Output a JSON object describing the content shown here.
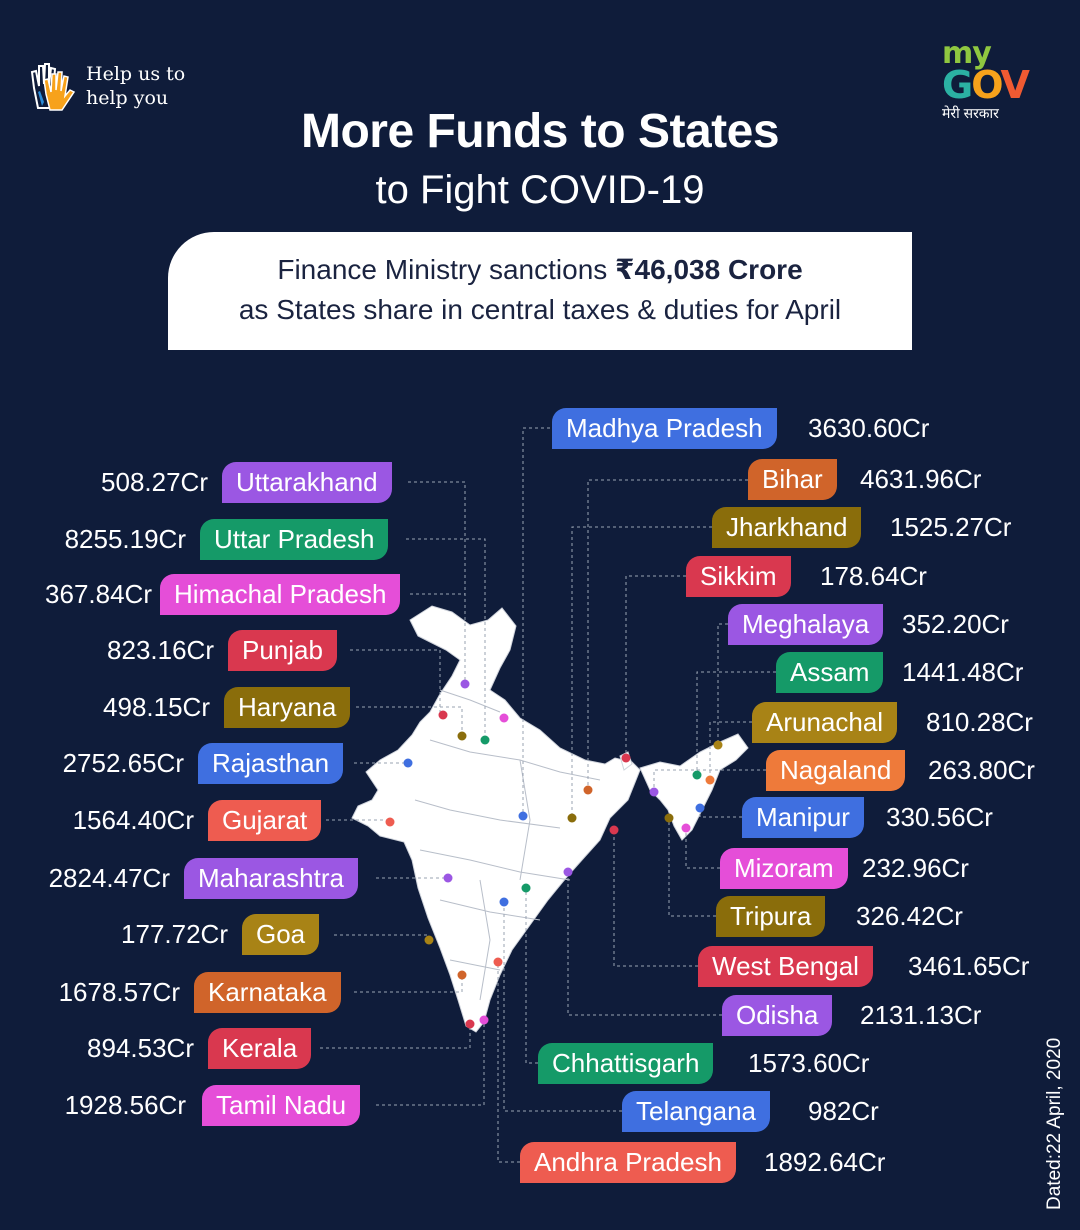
{
  "header": {
    "help_text_line1": "Help us to",
    "help_text_line2": "help you",
    "logo": {
      "my": "my",
      "gov": [
        "G",
        "O",
        "V"
      ],
      "hindi": "मेरी सरकार"
    },
    "title": "More Funds to States",
    "subtitle": "to Fight COVID-19"
  },
  "banner": {
    "line1_prefix": "Finance Ministry sanctions ",
    "line1_amount": "₹46,038 Crore",
    "line2": "as States share in central taxes & duties for April"
  },
  "left_states": [
    {
      "name": "Uttarakhand",
      "value": "508.27Cr",
      "color": "#9b57e3"
    },
    {
      "name": "Uttar Pradesh",
      "value": "8255.19Cr",
      "color": "#159a68"
    },
    {
      "name": "Himachal Pradesh",
      "value": "367.84Cr",
      "color": "#e54ed8"
    },
    {
      "name": "Punjab",
      "value": "823.16Cr",
      "color": "#d9384f"
    },
    {
      "name": "Haryana",
      "value": "498.15Cr",
      "color": "#8a6d0b"
    },
    {
      "name": "Rajasthan",
      "value": "2752.65Cr",
      "color": "#3f6fe0"
    },
    {
      "name": "Gujarat",
      "value": "1564.40Cr",
      "color": "#ee5c50"
    },
    {
      "name": "Maharashtra",
      "value": "2824.47Cr",
      "color": "#9b57e3"
    },
    {
      "name": "Goa",
      "value": "177.72Cr",
      "color": "#a88316"
    },
    {
      "name": "Karnataka",
      "value": "1678.57Cr",
      "color": "#d0642a"
    },
    {
      "name": "Kerala",
      "value": "894.53Cr",
      "color": "#d9384f"
    },
    {
      "name": "Tamil Nadu",
      "value": "1928.56Cr",
      "color": "#e54ed8"
    }
  ],
  "right_states": [
    {
      "name": "Madhya Pradesh",
      "value": "3630.60Cr",
      "color": "#3f6fe0"
    },
    {
      "name": "Bihar",
      "value": "4631.96Cr",
      "color": "#d0642a"
    },
    {
      "name": "Jharkhand",
      "value": "1525.27Cr",
      "color": "#8a6d0b"
    },
    {
      "name": "Sikkim",
      "value": "178.64Cr",
      "color": "#d9384f"
    },
    {
      "name": "Meghalaya",
      "value": "352.20Cr",
      "color": "#9b57e3"
    },
    {
      "name": "Assam",
      "value": "1441.48Cr",
      "color": "#159a68"
    },
    {
      "name": "Arunachal",
      "value": "810.28Cr",
      "color": "#a88316"
    },
    {
      "name": "Nagaland",
      "value": "263.80Cr",
      "color": "#ee7a3a"
    },
    {
      "name": "Manipur",
      "value": "330.56Cr",
      "color": "#3f6fe0"
    },
    {
      "name": "Mizoram",
      "value": "232.96Cr",
      "color": "#e54ed8"
    },
    {
      "name": "Tripura",
      "value": "326.42Cr",
      "color": "#8a6d0b"
    },
    {
      "name": "West Bengal",
      "value": "3461.65Cr",
      "color": "#d9384f"
    },
    {
      "name": "Odisha",
      "value": "2131.13Cr",
      "color": "#9b57e3"
    },
    {
      "name": "Chhattisgarh",
      "value": "1573.60Cr",
      "color": "#159a68"
    },
    {
      "name": "Telangana",
      "value": "982Cr",
      "color": "#3f6fe0"
    },
    {
      "name": "Andhra Pradesh",
      "value": "1892.64Cr",
      "color": "#ee5c50"
    }
  ],
  "footer": {
    "dated": "Dated:22 April, 2020"
  },
  "icons": {
    "hands": "hands-icon",
    "map": "india-map-icon"
  }
}
